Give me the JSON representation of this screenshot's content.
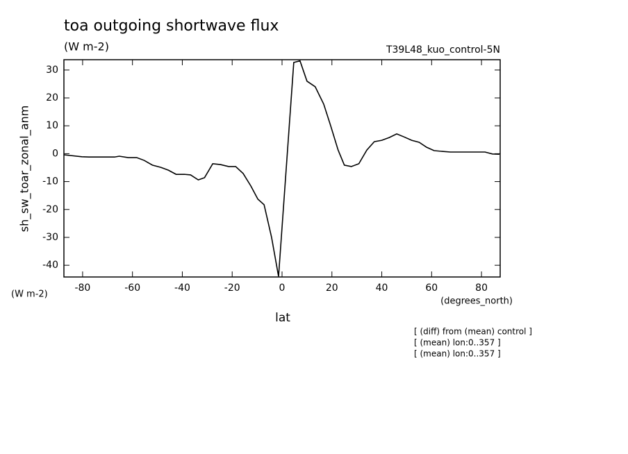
{
  "chart_data": {
    "type": "line",
    "title": "toa outgoing shortwave flux",
    "subtitle": "(W m-2)",
    "dataset_label": "T39L48_kuo_control-5N",
    "y_label": "sh_sw_toar_zonal_anm",
    "y_units": "(W m-2)",
    "x_label": "lat",
    "x_units": "(degrees_north)",
    "notes": [
      "[ (diff) from (mean) control ]",
      "[ (mean) lon:0..357 ]",
      "[ (mean) lon:0..357 ]"
    ],
    "x": [
      -87.5,
      -80.3,
      -77,
      -67.2,
      -65.3,
      -61.7,
      -58.3,
      -55.3,
      -52,
      -48.6,
      -45.6,
      -42.5,
      -39.2,
      -36.7,
      -33.6,
      -31.1,
      -27.8,
      -24.7,
      -21.4,
      -18.6,
      -15.6,
      -12.5,
      -9.7,
      -7.2,
      -4.2,
      -1.4,
      4.7,
      7.2,
      10,
      13.3,
      16.7,
      19.4,
      22.5,
      25,
      27.8,
      30.8,
      34,
      37,
      40,
      43,
      46,
      49,
      52,
      55,
      58,
      61,
      64.7,
      67.5,
      81.4,
      84.4,
      87.2
    ],
    "series": [
      {
        "name": "sh_sw_toar_zonal_anm",
        "color": "#000000",
        "values": [
          -0.4,
          -1.1,
          -1.2,
          -1.2,
          -0.9,
          -1.4,
          -1.4,
          -2.4,
          -4.1,
          -4.9,
          -5.9,
          -7.4,
          -7.4,
          -7.6,
          -9.4,
          -8.6,
          -3.6,
          -3.9,
          -4.6,
          -4.6,
          -7.1,
          -11.6,
          -16.3,
          -18.3,
          -30,
          -44,
          32.7,
          33.3,
          26,
          24,
          17.8,
          10.3,
          1.3,
          -4.1,
          -4.6,
          -3.6,
          1.3,
          4.3,
          4.8,
          5.8,
          7.1,
          6,
          4.8,
          4.1,
          2.3,
          1.1,
          0.8,
          0.6,
          0.6,
          -0.1,
          -0.2
        ]
      }
    ],
    "xlim": [
      -87.5,
      87.5
    ],
    "ylim": [
      -44.2,
      33.7
    ],
    "xticks": [
      -80,
      -60,
      -40,
      -20,
      0,
      20,
      40,
      60,
      80
    ],
    "yticks": [
      -40,
      -30,
      -20,
      -10,
      0,
      10,
      20,
      30
    ]
  }
}
